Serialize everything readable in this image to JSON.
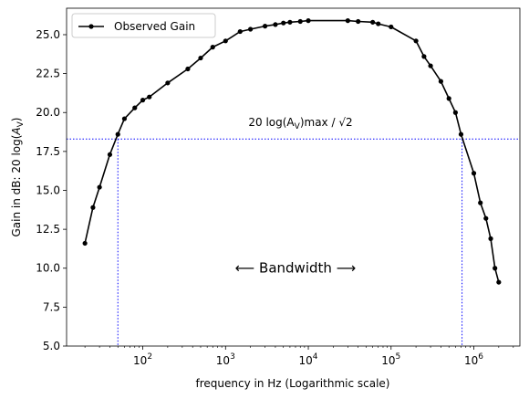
{
  "chart_data": {
    "type": "line",
    "xscale": "log",
    "xlabel": "frequency in Hz (Logarithmic scale)",
    "ylabel_prefix": "Gain in dB: 20 log(",
    "ylabel_var": "A",
    "ylabel_sub": "V",
    "ylabel_suffix": ")",
    "xlim": [
      12,
      3600000
    ],
    "ylim": [
      5.0,
      26.7
    ],
    "yticks": [
      5.0,
      7.5,
      10.0,
      12.5,
      15.0,
      17.5,
      20.0,
      22.5,
      25.0
    ],
    "ytick_labels": [
      "5.0",
      "7.5",
      "10.0",
      "12.5",
      "15.0",
      "17.5",
      "20.0",
      "22.5",
      "25.0"
    ],
    "xticks": [
      100,
      1000,
      10000,
      100000,
      1000000
    ],
    "xtick_bases": [
      "10",
      "10",
      "10",
      "10",
      "10"
    ],
    "xtick_exps": [
      "2",
      "3",
      "4",
      "5",
      "6"
    ],
    "legend": {
      "position": "upper left",
      "entries": [
        "Observed Gain"
      ]
    },
    "series": [
      {
        "name": "Observed Gain",
        "color": "#000000",
        "marker": "dot",
        "x": [
          20,
          25,
          30,
          40,
          50,
          60,
          80,
          100,
          120,
          200,
          350,
          500,
          700,
          1000,
          1500,
          2000,
          3000,
          4000,
          5000,
          6000,
          8000,
          10000,
          30000,
          40000,
          60000,
          70000,
          100000,
          200000,
          250000,
          300000,
          400000,
          500000,
          600000,
          700000,
          1000000,
          1200000,
          1400000,
          1600000,
          1800000,
          2000000
        ],
        "y": [
          11.6,
          13.9,
          15.2,
          17.3,
          18.6,
          19.6,
          20.3,
          20.8,
          21.0,
          21.9,
          22.8,
          23.5,
          24.2,
          24.6,
          25.2,
          25.35,
          25.55,
          25.65,
          25.75,
          25.8,
          25.85,
          25.9,
          25.9,
          25.85,
          25.8,
          25.7,
          25.5,
          24.6,
          23.6,
          23.0,
          22.0,
          20.9,
          20.0,
          18.6,
          16.1,
          14.2,
          13.2,
          11.9,
          10.0,
          9.1
        ]
      }
    ],
    "reference_level": 18.3,
    "cutoff_low": 50,
    "cutoff_high": 720000,
    "reference_color": "#0000ff",
    "annotation_formula_prefix": "20 log(A",
    "annotation_formula_sub": "V",
    "annotation_formula_max": ")max / √2",
    "annotation_bandwidth": "⟵ Bandwidth ⟶",
    "annotation_bandwidth_x": 7000
  }
}
